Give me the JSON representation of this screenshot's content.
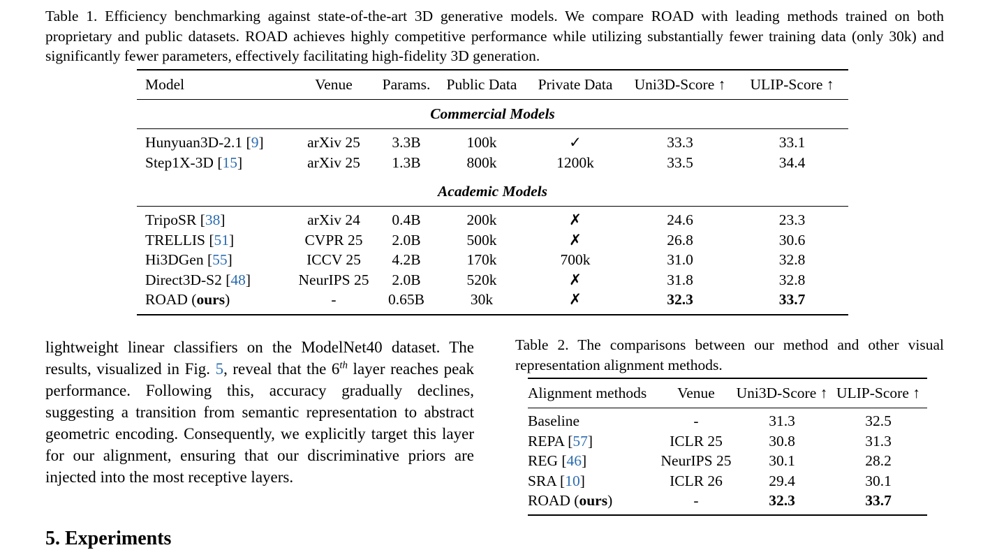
{
  "table1": {
    "caption": "Table 1. Efficiency benchmarking against state-of-the-art 3D generative models. We compare ROAD with leading methods trained on both proprietary and public datasets. ROAD achieves highly competitive performance while utilizing substantially fewer training data (only 30k) and significantly fewer parameters, effectively facilitating high-fidelity 3D generation.",
    "headers": {
      "model": "Model",
      "venue": "Venue",
      "params": "Params.",
      "public": "Public Data",
      "private": "Private Data",
      "uni3d": "Uni3D-Score ↑",
      "ulip": "ULIP-Score ↑"
    },
    "sections": [
      {
        "title": "Commercial Models",
        "rows": [
          {
            "model": "Hunyuan3D-2.1",
            "cite": "9",
            "venue": "arXiv 25",
            "params": "3.3B",
            "public": "100k",
            "private": "✓",
            "uni3d": "33.3",
            "ulip": "33.1"
          },
          {
            "model": "Step1X-3D",
            "cite": "15",
            "venue": "arXiv 25",
            "params": "1.3B",
            "public": "800k",
            "private": "1200k",
            "uni3d": "33.5",
            "ulip": "34.4"
          }
        ]
      },
      {
        "title": "Academic Models",
        "rows": [
          {
            "model": "TripoSR",
            "cite": "38",
            "venue": "arXiv 24",
            "params": "0.4B",
            "public": "200k",
            "private": "✗",
            "uni3d": "24.6",
            "ulip": "23.3"
          },
          {
            "model": "TRELLIS",
            "cite": "51",
            "venue": "CVPR 25",
            "params": "2.0B",
            "public": "500k",
            "private": "✗",
            "uni3d": "26.8",
            "ulip": "30.6"
          },
          {
            "model": "Hi3DGen",
            "cite": "55",
            "venue": "ICCV 25",
            "params": "4.2B",
            "public": "170k",
            "private": "700k",
            "uni3d": "31.0",
            "ulip": "32.8"
          },
          {
            "model": "Direct3D-S2",
            "cite": "48",
            "venue": "NeurIPS 25",
            "params": "2.0B",
            "public": "520k",
            "private": "✗",
            "uni3d": "31.8",
            "ulip": "32.8"
          },
          {
            "model": "ROAD",
            "ours": "ours",
            "venue": "-",
            "params": "0.65B",
            "public": "30k",
            "private": "✗",
            "uni3d": "32.3",
            "ulip": "33.7"
          }
        ]
      }
    ]
  },
  "body": {
    "part1": "lightweight linear classifiers on the ModelNet40 dataset. The results, visualized in Fig. ",
    "fig_ref": "5",
    "part2": ", reveal that the 6",
    "sup": "th",
    "part3": " layer reaches peak performance. Following this, accuracy grad­ually declines, suggesting a transition from semantic repre­sentation to abstract geometric encoding. Consequently, we explicitly target this layer for our alignment, ensuring that our discriminative priors are injected into the most receptive layers."
  },
  "section_heading": "5. Experiments",
  "table2": {
    "caption": "Table 2. The comparisons between our method and other visual representation alignment methods.",
    "headers": {
      "method": "Alignment methods",
      "venue": "Venue",
      "uni3d": "Uni3D-Score ↑",
      "ulip": "ULIP-Score ↑"
    },
    "rows": [
      {
        "method": "Baseline",
        "venue": "-",
        "uni3d": "31.3",
        "ulip": "32.5"
      },
      {
        "method": "REPA",
        "cite": "57",
        "venue": "ICLR 25",
        "uni3d": "30.8",
        "ulip": "31.3"
      },
      {
        "method": "REG",
        "cite": "46",
        "venue": "NeurIPS 25",
        "uni3d": "30.1",
        "ulip": "28.2"
      },
      {
        "method": "SRA",
        "cite": "10",
        "venue": "ICLR 26",
        "uni3d": "29.4",
        "ulip": "30.1"
      },
      {
        "method": "ROAD",
        "ours": "ours",
        "venue": "-",
        "uni3d": "32.3",
        "ulip": "33.7"
      }
    ]
  }
}
